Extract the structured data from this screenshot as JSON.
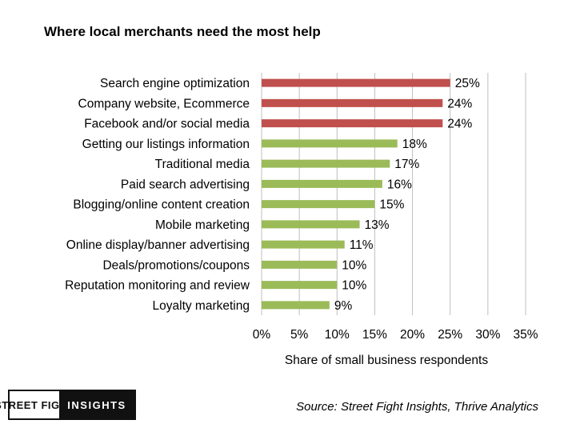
{
  "chart_data": {
    "type": "bar",
    "orientation": "horizontal",
    "title": "Where local merchants need the most help",
    "xlabel": "Share of small business respondents",
    "ylabel": "",
    "xlim": [
      0,
      35
    ],
    "ticks": [
      "0%",
      "5%",
      "10%",
      "15%",
      "20%",
      "25%",
      "30%",
      "35%"
    ],
    "tick_values": [
      0,
      5,
      10,
      15,
      20,
      25,
      30,
      35
    ],
    "grid": "vertical",
    "categories": [
      "Search engine optimization",
      "Company website, Ecommerce",
      "Facebook and/or social media",
      "Getting our listings information",
      "Traditional media",
      "Paid search advertising",
      "Blogging/online content creation",
      "Mobile marketing",
      "Online display/banner advertising",
      "Deals/promotions/coupons",
      "Reputation monitoring and review",
      "Loyalty marketing"
    ],
    "values": [
      25,
      24,
      24,
      18,
      17,
      16,
      15,
      13,
      11,
      10,
      10,
      9
    ],
    "value_labels": [
      "25%",
      "24%",
      "24%",
      "18%",
      "17%",
      "16%",
      "15%",
      "13%",
      "11%",
      "10%",
      "10%",
      "9%"
    ],
    "colors": [
      "#c0504d",
      "#c0504d",
      "#c0504d",
      "#9bbb59",
      "#9bbb59",
      "#9bbb59",
      "#9bbb59",
      "#9bbb59",
      "#9bbb59",
      "#9bbb59",
      "#9bbb59",
      "#9bbb59"
    ]
  },
  "logo": {
    "left_text": "STREET FIGHT",
    "right_text": "INSIGHTS"
  },
  "source": "Source: Street Fight Insights, Thrive Analytics",
  "colors": {
    "highlight": "#c0504d",
    "standard": "#9bbb59",
    "grid": "#bfbfbf"
  }
}
